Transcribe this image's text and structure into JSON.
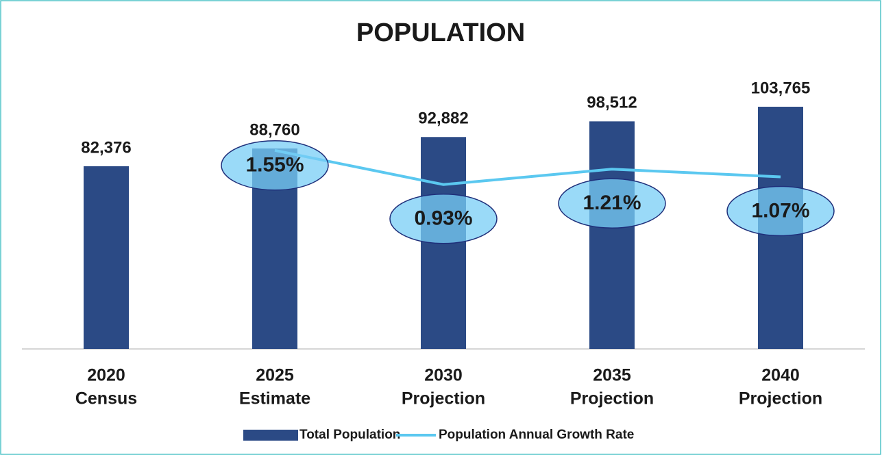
{
  "chart_data": {
    "type": "bar",
    "title": "POPULATION",
    "categories": [
      [
        "2020",
        "Census"
      ],
      [
        "2025",
        "Estimate"
      ],
      [
        "2030",
        "Projection"
      ],
      [
        "2035",
        "Projection"
      ],
      [
        "2040",
        "Projection"
      ]
    ],
    "series": [
      {
        "name": "Total Population",
        "type": "bar",
        "color": "#2b4a85",
        "values": [
          82376,
          88760,
          92882,
          98512,
          103765
        ],
        "value_labels": [
          "82,376",
          "88,760",
          "92,882",
          "98,512",
          "103,765"
        ]
      },
      {
        "name": "Population Annual Growth Rate",
        "type": "line",
        "axis": "y2",
        "color": "#5bc8f0",
        "values": [
          null,
          1.55,
          0.93,
          1.21,
          1.07
        ],
        "value_labels": [
          null,
          "1.55%",
          "0.93%",
          "1.21%",
          "1.07%"
        ]
      }
    ],
    "ylim": [
      16700,
      120000
    ],
    "y2lim": [
      -2.05,
      3.16
    ],
    "legend": "bottom"
  }
}
